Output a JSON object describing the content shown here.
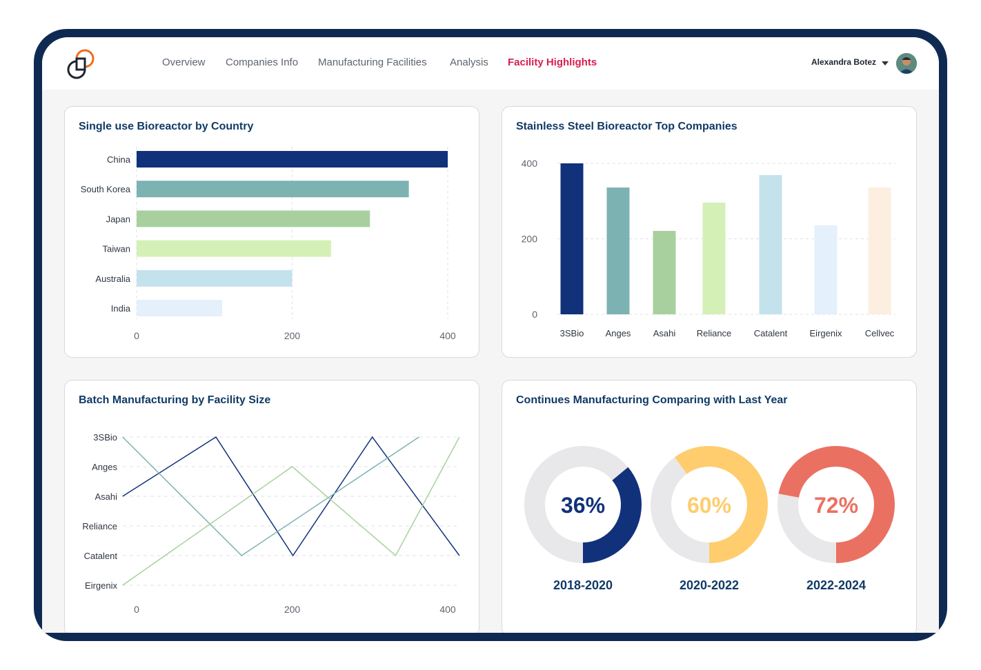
{
  "nav": {
    "items": [
      "Overview",
      "Companies Info",
      "Manufacturing Facilities",
      "Analysis",
      "Facility Highlights"
    ],
    "active": "Facility Highlights"
  },
  "user": {
    "name": "Alexandra Botez"
  },
  "colors": {
    "navy": "#11317a",
    "teal": "#7cb3b2",
    "green": "#a8d09f",
    "lime": "#d4f0b6",
    "sky": "#c4e2ec",
    "ice": "#e4f0fb",
    "cream": "#fcefe0",
    "yellow": "#ffcd6e",
    "coral": "#ea7162",
    "active_nav": "#d81e4d"
  },
  "cards": {
    "bioreactor_country": {
      "title": "Single use Bioreactor by Country",
      "chart_data": {
        "type": "bar",
        "orientation": "horizontal",
        "categories": [
          "China",
          "South Korea",
          "Japan",
          "Taiwan",
          "Australia",
          "India"
        ],
        "values": [
          400,
          350,
          300,
          250,
          200,
          110
        ],
        "xlim": [
          0,
          400
        ],
        "xticks": [
          0,
          200,
          400
        ],
        "colors": [
          "#11317a",
          "#7cb3b2",
          "#a8d09f",
          "#d4f0b6",
          "#c4e2ec",
          "#e4f0fb"
        ]
      }
    },
    "steel_companies": {
      "title": "Stainless Steel Bioreactor Top Companies",
      "chart_data": {
        "type": "bar",
        "categories": [
          "3SBio",
          "Anges",
          "Asahi",
          "Reliance",
          "Catalent",
          "Eirgenix",
          "Cellvec"
        ],
        "values": [
          400,
          336,
          221,
          296,
          369,
          236,
          336
        ],
        "ylim": [
          0,
          400
        ],
        "yticks": [
          0,
          200,
          400
        ],
        "colors": [
          "#11317a",
          "#7cb3b2",
          "#a8d09f",
          "#d4f0b6",
          "#c4e2ec",
          "#e4f0fb",
          "#fcefe0"
        ]
      }
    },
    "batch_manufacturing": {
      "title": "Batch Manufacturing by Facility Size",
      "chart_data": {
        "type": "line",
        "categories": [
          "3SBio",
          "Anges",
          "Asahi",
          "Reliance",
          "Catalent",
          "Eirgenix"
        ],
        "xlim": [
          0,
          400
        ],
        "xticks": [
          0,
          200,
          400
        ],
        "series": [
          {
            "color": "#11317a",
            "points": [
              [
                -18,
                2
              ],
              [
                102,
                0
              ],
              [
                201,
                4
              ],
              [
                303,
                0
              ],
              [
                415,
                4
              ]
            ]
          },
          {
            "color": "#7cb3b2",
            "points": [
              [
                -18,
                0
              ],
              [
                135,
                4
              ],
              [
                363,
                0
              ]
            ]
          },
          {
            "color": "#a8d09f",
            "points": [
              [
                -18,
                5
              ],
              [
                200,
                1
              ],
              [
                333,
                4
              ],
              [
                415,
                0
              ]
            ]
          }
        ]
      }
    },
    "continuous_manufacturing": {
      "title": "Continues Manufacturing Comparing with Last Year",
      "donuts": [
        {
          "value": 36,
          "label": "36%",
          "period": "2018-2020",
          "color": "#11317a"
        },
        {
          "value": 60,
          "label": "60%",
          "period": "2020-2022",
          "color": "#ffcd6e"
        },
        {
          "value": 72,
          "label": "72%",
          "period": "2022-2024",
          "color": "#ea7162"
        }
      ]
    }
  }
}
